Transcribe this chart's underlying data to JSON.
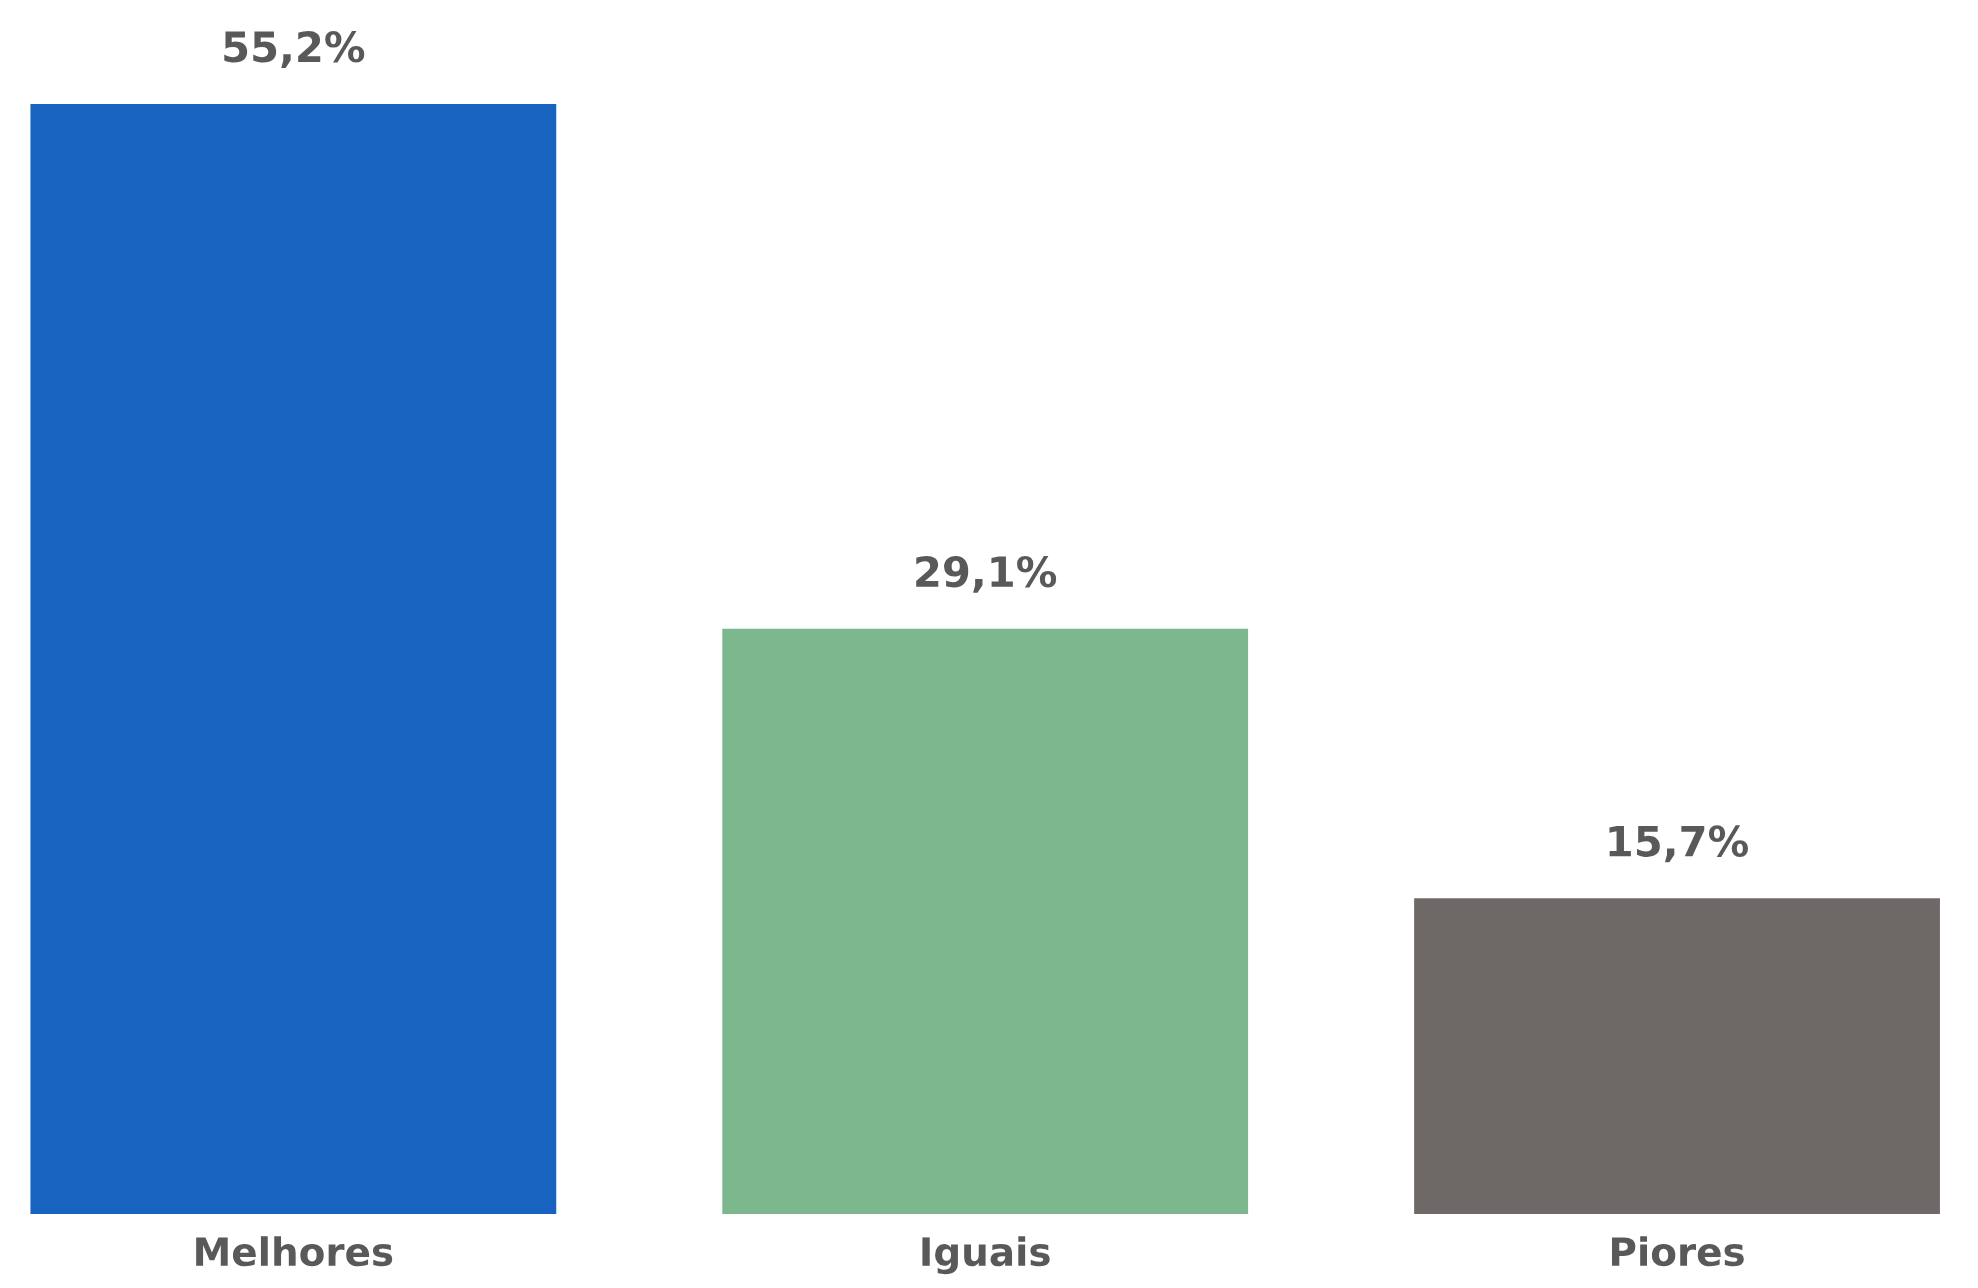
{
  "chart_data": {
    "type": "bar",
    "categories": [
      "Melhores",
      "Iguais",
      "Piores"
    ],
    "values": [
      55.2,
      29.1,
      15.7
    ],
    "colors": [
      "#1862c0",
      "#7cb78e",
      "#6e6966"
    ],
    "value_labels": [
      "55,2%",
      "29,1%",
      "15,7%"
    ],
    "grid": false,
    "legend": false
  }
}
